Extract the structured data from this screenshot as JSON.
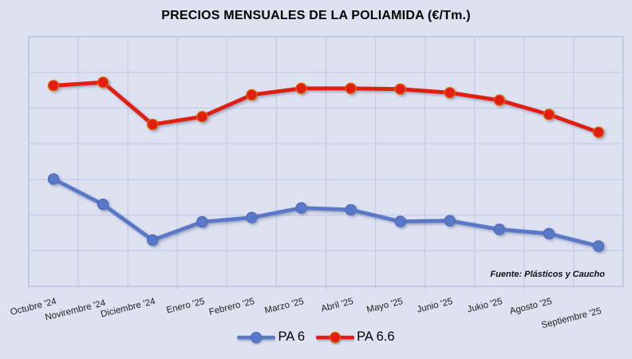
{
  "title": "PRECIOS MENSUALES DE LA POLIAMIDA (€/Tm.)",
  "source_note": "Fuente: Plásticos y Caucho",
  "colors": {
    "background": "#dde1f0",
    "gridline": "#c3cce8",
    "plot_border": "#bcc6e4",
    "title_text": "#000000",
    "axis_label_text": "#212121",
    "pa6_blue": "#5a78c8",
    "pa66_red": "#e21d12",
    "pa66_marker_ring": "#d96f00"
  },
  "chart_data": {
    "type": "line",
    "title": "PRECIOS MENSUALES DE LA POLIAMIDA (€/Tm.)",
    "source": "Fuente: Plásticos y Caucho",
    "categories": [
      "Octubre '24",
      "Novirembre '24",
      "Diciembre '24",
      "Enero '25",
      "Febrero '25",
      "Marzo '25",
      "Abril '25",
      "Mayo '25",
      "Junio '25",
      "Jukio '25",
      "Agosto '25",
      "Septiembre '25"
    ],
    "series": [
      {
        "name": "PA 6",
        "color": "#5a78c8",
        "marker_ring": "#4d6ab8",
        "values": [
          3.01,
          2.3,
          1.3,
          1.81,
          1.93,
          2.2,
          2.15,
          1.82,
          1.84,
          1.6,
          1.48,
          1.13
        ]
      },
      {
        "name": "PA 6.6",
        "color": "#e21d12",
        "marker_ring": "#d96f00",
        "values": [
          5.63,
          5.72,
          4.54,
          4.76,
          5.37,
          5.55,
          5.55,
          5.53,
          5.43,
          5.22,
          4.82,
          4.32
        ]
      }
    ],
    "y_axis": {
      "labels_visible": false,
      "note": "No numeric y-axis labels shown in chart; values estimated in horizontal-gridline units measured from the bottom plot border (7 gridline rows total).",
      "gridline_rows": 7,
      "range": [
        0,
        7
      ]
    },
    "x_axis": {
      "label_rotation_deg": -14,
      "tick_marks": true
    },
    "grid": true,
    "legend": {
      "position": "bottom",
      "entries": [
        "PA 6",
        "PA 6.6"
      ]
    }
  }
}
